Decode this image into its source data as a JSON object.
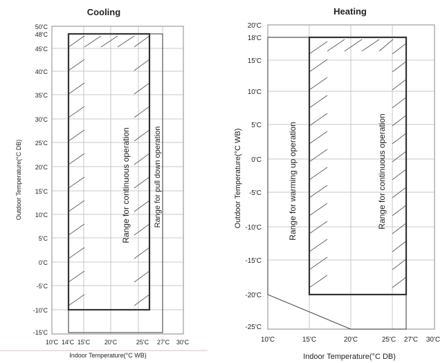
{
  "cooling": {
    "title": "Cooling",
    "ylabel": "Outdoor Temperature(°C DB)",
    "xlabel": "Indoor Temperature(°C WB)",
    "y_ticks": [
      "50'C",
      "48'C",
      "45'C",
      "40'C",
      "35'C",
      "30'C",
      "25'C",
      "20'C",
      "15'C",
      "10'C",
      "5'C",
      "0'C",
      "-5'C",
      "-10'C",
      "-15'C"
    ],
    "x_ticks": [
      "10'C",
      "14'C",
      "15'C",
      "20'C",
      "25'C",
      "27'C",
      "30'C"
    ],
    "region_continuous": "Range for continuous operation",
    "region_pulldown": "Range for pull down operation"
  },
  "heating": {
    "title": "Heating",
    "ylabel": "Outdoor Temperature(°C WB)",
    "xlabel": "Indoor Temperature(°C DB)",
    "y_ticks": [
      "20'C",
      "18'C",
      "15'C",
      "10'C",
      "5'C",
      "0'C",
      "-5'C",
      "-10'C",
      "-15'C",
      "-20'C",
      "-25'C"
    ],
    "x_ticks": [
      "10'C",
      "15'C",
      "20'C",
      "25'C",
      "27'C",
      "30'C"
    ],
    "region_warmup": "Range for warming up operation",
    "region_continuous": "Range for continuous operation"
  }
}
